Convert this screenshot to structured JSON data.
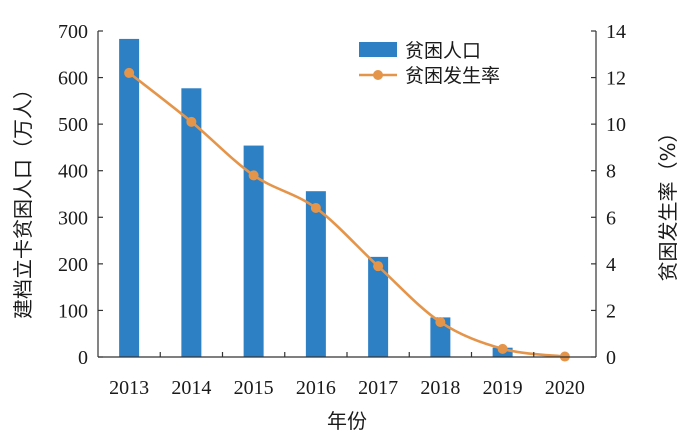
{
  "chart_data": {
    "type": "bar+line",
    "categories": [
      "2013",
      "2014",
      "2015",
      "2016",
      "2017",
      "2018",
      "2019",
      "2020"
    ],
    "series": [
      {
        "name": "贫困人口",
        "type": "bar",
        "axis": "left",
        "color": "#2e80c4",
        "values": [
          683,
          577,
          454,
          356,
          215,
          85,
          20,
          0
        ]
      },
      {
        "name": "贫困发生率",
        "type": "line",
        "axis": "right",
        "color": "#e5954a",
        "values": [
          12.2,
          10.1,
          7.8,
          6.4,
          3.9,
          1.5,
          0.35,
          0.02
        ]
      }
    ],
    "xlabel": "年份",
    "ylabel": "建档立卡贫困人口（万人）",
    "y2label": "贫困发生率（%）",
    "ylim": [
      0,
      700
    ],
    "y2lim": [
      0,
      14
    ],
    "yticks": [
      0,
      100,
      200,
      300,
      400,
      500,
      600,
      700
    ],
    "y2ticks": [
      0,
      2,
      4,
      6,
      8,
      10,
      12,
      14
    ],
    "legend_position": "top-right",
    "grid": false
  }
}
